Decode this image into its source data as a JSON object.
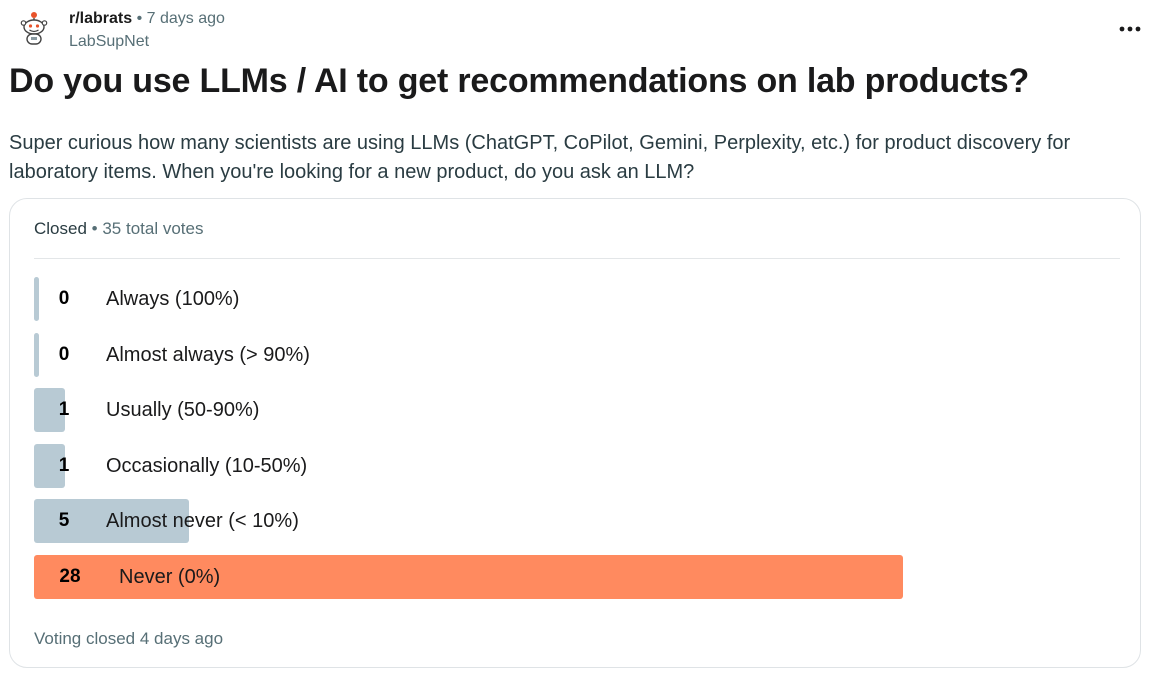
{
  "post": {
    "subreddit": "r/labrats",
    "separator": "•",
    "age": "7 days ago",
    "author": "LabSupNet",
    "more_icon": "ellipsis-icon",
    "title": "Do you use LLMs / AI to get recommendations on lab products?",
    "body": "Super curious how many scientists are using LLMs (ChatGPT, CoPilot, Gemini, Perplexity, etc.) for product discovery for laboratory items. When you're looking for a new product, do you ask an LLM?"
  },
  "poll": {
    "status": "Closed",
    "separator": "•",
    "total": "35 total votes",
    "options": [
      {
        "count": "0",
        "label": "Always (100%)",
        "share": 0
      },
      {
        "count": "0",
        "label": "Almost always (> 90%)",
        "share": 0
      },
      {
        "count": "1",
        "label": "Usually (50-90%)",
        "share": 0.0357
      },
      {
        "count": "1",
        "label": "Occasionally (10-50%)",
        "share": 0.0357
      },
      {
        "count": "5",
        "label": "Almost never (< 10%)",
        "share": 0.1786
      },
      {
        "count": "28",
        "label": "Never (0%)",
        "share": 1.0,
        "winner": true
      }
    ],
    "footer": "Voting closed 4 days ago"
  },
  "colors": {
    "bar": "#b8cad4",
    "winner_bar": "#ff8a5f",
    "muted_text": "#576f76"
  }
}
